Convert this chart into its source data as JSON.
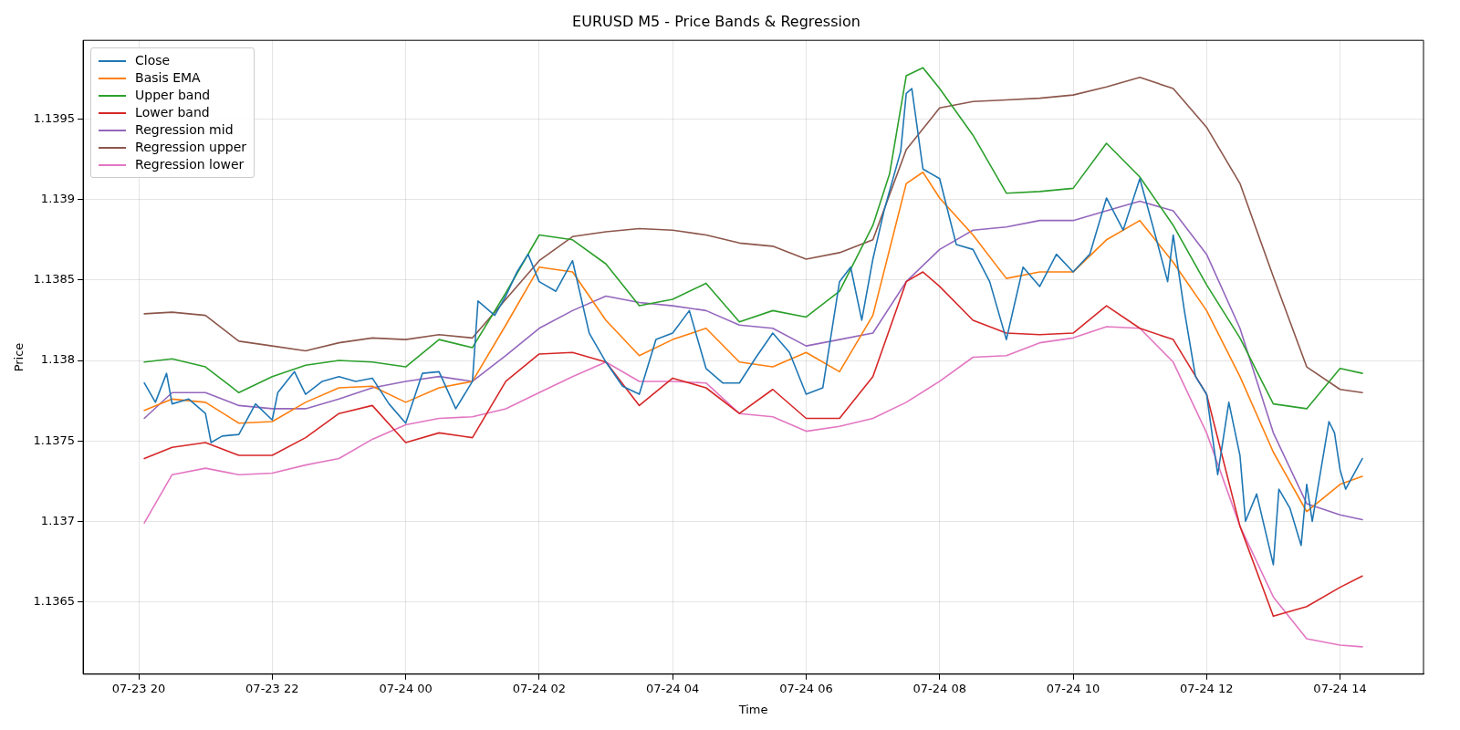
{
  "chart_data": {
    "type": "line",
    "title": "EURUSD M5 - Price Bands & Regression",
    "xlabel": "Time",
    "ylabel": "Price",
    "xlim": [
      "--07-23T19:10",
      "--07-24T15:15"
    ],
    "ylim": [
      1.13605,
      1.13999
    ],
    "xticks": [
      {
        "value": "--07-23T20:00",
        "label": "07-23 20"
      },
      {
        "value": "--07-23T22:00",
        "label": "07-23 22"
      },
      {
        "value": "--07-24T00:00",
        "label": "07-24 00"
      },
      {
        "value": "--07-24T02:00",
        "label": "07-24 02"
      },
      {
        "value": "--07-24T04:00",
        "label": "07-24 04"
      },
      {
        "value": "--07-24T06:00",
        "label": "07-24 06"
      },
      {
        "value": "--07-24T08:00",
        "label": "07-24 08"
      },
      {
        "value": "--07-24T10:00",
        "label": "07-24 10"
      },
      {
        "value": "--07-24T12:00",
        "label": "07-24 12"
      },
      {
        "value": "--07-24T14:00",
        "label": "07-24 14"
      }
    ],
    "yticks": [
      1.1365,
      1.137,
      1.1375,
      1.138,
      1.1385,
      1.139,
      1.1395
    ],
    "grid": true,
    "legend": "top left",
    "marker": "none",
    "line_style": "solid",
    "x": [
      "--07-23T20:05",
      "--07-23T20:30",
      "--07-23T21:00",
      "--07-23T21:30",
      "--07-23T22:00",
      "--07-23T22:30",
      "--07-23T23:00",
      "--07-23T23:30",
      "--07-24T00:00",
      "--07-24T00:30",
      "--07-24T01:00",
      "--07-24T01:30",
      "--07-24T02:00",
      "--07-24T02:30",
      "--07-24T03:00",
      "--07-24T03:30",
      "--07-24T04:00",
      "--07-24T04:30",
      "--07-24T05:00",
      "--07-24T05:30",
      "--07-24T06:00",
      "--07-24T06:30",
      "--07-24T07:00",
      "--07-24T07:30",
      "--07-24T08:00",
      "--07-24T08:30",
      "--07-24T09:00",
      "--07-24T09:30",
      "--07-24T10:00",
      "--07-24T10:30",
      "--07-24T11:00",
      "--07-24T11:30",
      "--07-24T12:00",
      "--07-24T12:30",
      "--07-24T13:00",
      "--07-24T13:30",
      "--07-24T14:00",
      "--07-24T14:20"
    ],
    "series": [
      {
        "name": "Close",
        "color": "#1f77b4",
        "x": [
          "--07-23T20:05",
          "--07-23T20:15",
          "--07-23T20:25",
          "--07-23T20:30",
          "--07-23T20:45",
          "--07-23T21:00",
          "--07-23T21:05",
          "--07-23T21:15",
          "--07-23T21:30",
          "--07-23T21:45",
          "--07-23T22:00",
          "--07-23T22:05",
          "--07-23T22:20",
          "--07-23T22:30",
          "--07-23T22:45",
          "--07-23T23:00",
          "--07-23T23:15",
          "--07-23T23:30",
          "--07-23T23:45",
          "--07-24T00:00",
          "--07-24T00:15",
          "--07-24T00:30",
          "--07-24T00:45",
          "--07-24T01:00",
          "--07-24T01:05",
          "--07-24T01:20",
          "--07-24T01:30",
          "--07-24T01:40",
          "--07-24T01:50",
          "--07-24T02:00",
          "--07-24T02:15",
          "--07-24T02:30",
          "--07-24T02:45",
          "--07-24T03:00",
          "--07-24T03:15",
          "--07-24T03:30",
          "--07-24T03:45",
          "--07-24T04:00",
          "--07-24T04:15",
          "--07-24T04:30",
          "--07-24T04:45",
          "--07-24T05:00",
          "--07-24T05:15",
          "--07-24T05:30",
          "--07-24T05:45",
          "--07-24T06:00",
          "--07-24T06:15",
          "--07-24T06:30",
          "--07-24T06:40",
          "--07-24T06:50",
          "--07-24T07:00",
          "--07-24T07:10",
          "--07-24T07:25",
          "--07-24T07:30",
          "--07-24T07:35",
          "--07-24T07:45",
          "--07-24T08:00",
          "--07-24T08:15",
          "--07-24T08:30",
          "--07-24T08:45",
          "--07-24T09:00",
          "--07-24T09:15",
          "--07-24T09:30",
          "--07-24T09:45",
          "--07-24T10:00",
          "--07-24T10:15",
          "--07-24T10:30",
          "--07-24T10:45",
          "--07-24T11:00",
          "--07-24T11:15",
          "--07-24T11:25",
          "--07-24T11:30",
          "--07-24T11:40",
          "--07-24T11:50",
          "--07-24T12:00",
          "--07-24T12:10",
          "--07-24T12:20",
          "--07-24T12:30",
          "--07-24T12:35",
          "--07-24T12:45",
          "--07-24T13:00",
          "--07-24T13:05",
          "--07-24T13:15",
          "--07-24T13:25",
          "--07-24T13:30",
          "--07-24T13:35",
          "--07-24T13:50",
          "--07-24T13:55",
          "--07-24T14:00",
          "--07-24T14:05",
          "--07-24T14:20"
        ],
        "values": [
          1.13786,
          1.13774,
          1.13792,
          1.13773,
          1.13776,
          1.13767,
          1.13749,
          1.13753,
          1.13754,
          1.13773,
          1.13763,
          1.1378,
          1.13793,
          1.13779,
          1.13787,
          1.1379,
          1.13787,
          1.13789,
          1.13773,
          1.13761,
          1.13792,
          1.13793,
          1.1377,
          1.13787,
          1.13837,
          1.13828,
          1.1384,
          1.13855,
          1.13866,
          1.13849,
          1.13843,
          1.13862,
          1.13817,
          1.13799,
          1.13784,
          1.13779,
          1.13813,
          1.13817,
          1.13831,
          1.13795,
          1.13786,
          1.13786,
          1.13802,
          1.13817,
          1.13805,
          1.13779,
          1.13783,
          1.13849,
          1.13858,
          1.13825,
          1.13863,
          1.13893,
          1.1393,
          1.13966,
          1.13969,
          1.13919,
          1.13913,
          1.13872,
          1.13869,
          1.13849,
          1.13813,
          1.13858,
          1.13846,
          1.13866,
          1.13855,
          1.13866,
          1.13901,
          1.13881,
          1.13913,
          1.13875,
          1.13849,
          1.13878,
          1.13831,
          1.1379,
          1.13779,
          1.13729,
          1.13774,
          1.13741,
          1.137,
          1.13717,
          1.13673,
          1.1372,
          1.13708,
          1.13685,
          1.13723,
          1.137,
          1.13762,
          1.13755,
          1.13732,
          1.1372,
          1.13739
        ]
      },
      {
        "name": "Basis EMA",
        "color": "#ff7f0e",
        "x": [
          "--07-23T20:05",
          "--07-23T20:30",
          "--07-23T21:00",
          "--07-23T21:30",
          "--07-23T22:00",
          "--07-23T22:30",
          "--07-23T23:00",
          "--07-23T23:30",
          "--07-24T00:00",
          "--07-24T00:30",
          "--07-24T01:00",
          "--07-24T01:30",
          "--07-24T02:00",
          "--07-24T02:30",
          "--07-24T03:00",
          "--07-24T03:30",
          "--07-24T04:00",
          "--07-24T04:30",
          "--07-24T05:00",
          "--07-24T05:30",
          "--07-24T06:00",
          "--07-24T06:30",
          "--07-24T07:00",
          "--07-24T07:30",
          "--07-24T07:45",
          "--07-24T08:00",
          "--07-24T08:30",
          "--07-24T09:00",
          "--07-24T09:30",
          "--07-24T10:00",
          "--07-24T10:30",
          "--07-24T11:00",
          "--07-24T11:30",
          "--07-24T12:00",
          "--07-24T12:30",
          "--07-24T13:00",
          "--07-24T13:30",
          "--07-24T14:00",
          "--07-24T14:20"
        ],
        "values": [
          1.13769,
          1.13776,
          1.13774,
          1.13761,
          1.13762,
          1.13774,
          1.13783,
          1.13784,
          1.13774,
          1.13783,
          1.13787,
          1.13822,
          1.13858,
          1.13855,
          1.13825,
          1.13803,
          1.13813,
          1.1382,
          1.13799,
          1.13796,
          1.13805,
          1.13793,
          1.13828,
          1.1391,
          1.13917,
          1.13901,
          1.13878,
          1.13851,
          1.13855,
          1.13855,
          1.13875,
          1.13887,
          1.13861,
          1.13831,
          1.1379,
          1.13743,
          1.13706,
          1.13723,
          1.13728
        ]
      },
      {
        "name": "Upper band",
        "color": "#2ca02c",
        "x": [
          "--07-23T20:05",
          "--07-23T20:30",
          "--07-23T21:00",
          "--07-23T21:30",
          "--07-23T22:00",
          "--07-23T22:30",
          "--07-23T23:00",
          "--07-23T23:30",
          "--07-24T00:00",
          "--07-24T00:30",
          "--07-24T01:00",
          "--07-24T01:30",
          "--07-24T02:00",
          "--07-24T02:30",
          "--07-24T03:00",
          "--07-24T03:30",
          "--07-24T04:00",
          "--07-24T04:30",
          "--07-24T05:00",
          "--07-24T05:30",
          "--07-24T06:00",
          "--07-24T06:30",
          "--07-24T07:00",
          "--07-24T07:15",
          "--07-24T07:30",
          "--07-24T07:45",
          "--07-24T08:00",
          "--07-24T08:30",
          "--07-24T09:00",
          "--07-24T09:30",
          "--07-24T10:00",
          "--07-24T10:30",
          "--07-24T11:00",
          "--07-24T11:30",
          "--07-24T12:00",
          "--07-24T12:30",
          "--07-24T13:00",
          "--07-24T13:30",
          "--07-24T14:00",
          "--07-24T14:20"
        ],
        "values": [
          1.13799,
          1.13801,
          1.13796,
          1.1378,
          1.1379,
          1.13797,
          1.138,
          1.13799,
          1.13796,
          1.13813,
          1.13808,
          1.13842,
          1.13878,
          1.13875,
          1.1386,
          1.13834,
          1.13838,
          1.13848,
          1.13824,
          1.13831,
          1.13827,
          1.13843,
          1.13884,
          1.13916,
          1.13977,
          1.13982,
          1.13969,
          1.1394,
          1.13904,
          1.13905,
          1.13907,
          1.13935,
          1.13914,
          1.13884,
          1.13847,
          1.13814,
          1.13773,
          1.1377,
          1.13795,
          1.13792
        ]
      },
      {
        "name": "Lower band",
        "color": "#d62728",
        "x": [
          "--07-23T20:05",
          "--07-23T20:30",
          "--07-23T21:00",
          "--07-23T21:30",
          "--07-23T22:00",
          "--07-23T22:30",
          "--07-23T23:00",
          "--07-23T23:30",
          "--07-24T00:00",
          "--07-24T00:30",
          "--07-24T01:00",
          "--07-24T01:30",
          "--07-24T02:00",
          "--07-24T02:30",
          "--07-24T03:00",
          "--07-24T03:30",
          "--07-24T04:00",
          "--07-24T04:30",
          "--07-24T05:00",
          "--07-24T05:30",
          "--07-24T06:00",
          "--07-24T06:30",
          "--07-24T07:00",
          "--07-24T07:30",
          "--07-24T07:45",
          "--07-24T08:00",
          "--07-24T08:30",
          "--07-24T09:00",
          "--07-24T09:30",
          "--07-24T10:00",
          "--07-24T10:30",
          "--07-24T11:00",
          "--07-24T11:30",
          "--07-24T12:00",
          "--07-24T12:30",
          "--07-24T13:00",
          "--07-24T13:30",
          "--07-24T14:00",
          "--07-24T14:20"
        ],
        "values": [
          1.13739,
          1.13746,
          1.13749,
          1.13741,
          1.13741,
          1.13752,
          1.13767,
          1.13772,
          1.13749,
          1.13755,
          1.13752,
          1.13787,
          1.13804,
          1.13805,
          1.13799,
          1.13772,
          1.13789,
          1.13783,
          1.13767,
          1.13782,
          1.13764,
          1.13764,
          1.1379,
          1.13849,
          1.13855,
          1.13846,
          1.13825,
          1.13817,
          1.13816,
          1.13817,
          1.13834,
          1.1382,
          1.13813,
          1.13779,
          1.13697,
          1.13641,
          1.13647,
          1.13659,
          1.13666
        ]
      },
      {
        "name": "Regression mid",
        "color": "#9467bd",
        "values": [
          1.13764,
          1.1378,
          1.1378,
          1.13772,
          1.1377,
          1.1377,
          1.13776,
          1.13783,
          1.13787,
          1.1379,
          1.13787,
          1.13803,
          1.1382,
          1.13831,
          1.1384,
          1.13836,
          1.13834,
          1.13831,
          1.13822,
          1.1382,
          1.13809,
          1.13813,
          1.13817,
          1.13849,
          1.13869,
          1.13881,
          1.13883,
          1.13887,
          1.13887,
          1.13893,
          1.13899,
          1.13893,
          1.13866,
          1.1382,
          1.13755,
          1.13711,
          1.13704,
          1.13701
        ]
      },
      {
        "name": "Regression upper",
        "color": "#8c564b",
        "values": [
          1.13829,
          1.1383,
          1.13828,
          1.13812,
          1.13809,
          1.13806,
          1.13811,
          1.13814,
          1.13813,
          1.13816,
          1.13814,
          1.13838,
          1.13862,
          1.13877,
          1.1388,
          1.13882,
          1.13881,
          1.13878,
          1.13873,
          1.13871,
          1.13863,
          1.13867,
          1.13875,
          1.13931,
          1.13957,
          1.13961,
          1.13962,
          1.13963,
          1.13965,
          1.1397,
          1.13976,
          1.13969,
          1.13945,
          1.1391,
          1.13852,
          1.13796,
          1.13782,
          1.1378
        ]
      },
      {
        "name": "Regression lower",
        "color": "#e377c2",
        "values": [
          1.13699,
          1.13729,
          1.13733,
          1.13729,
          1.1373,
          1.13735,
          1.13739,
          1.13751,
          1.1376,
          1.13764,
          1.13765,
          1.1377,
          1.1378,
          1.1379,
          1.13799,
          1.13787,
          1.13787,
          1.13786,
          1.13767,
          1.13765,
          1.13756,
          1.13759,
          1.13764,
          1.13774,
          1.13787,
          1.13802,
          1.13803,
          1.13811,
          1.13814,
          1.13821,
          1.1382,
          1.13799,
          1.13755,
          1.13697,
          1.13653,
          1.13627,
          1.13623,
          1.13622
        ]
      }
    ]
  }
}
